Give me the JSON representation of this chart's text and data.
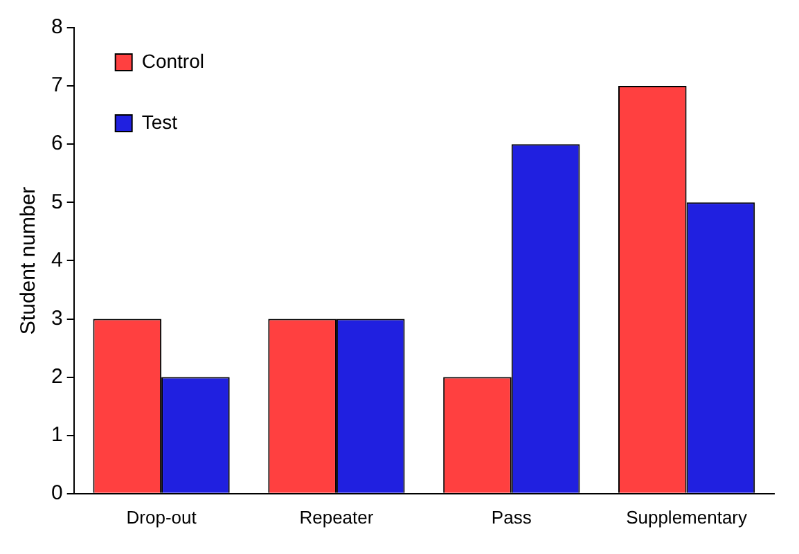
{
  "chart_data": {
    "type": "bar",
    "ylabel": "Student number",
    "categories": [
      "Drop-out",
      "Repeater",
      "Pass",
      "Supplementary"
    ],
    "series": [
      {
        "name": "Control",
        "color": "#ff4040",
        "values": [
          3,
          3,
          2,
          7
        ]
      },
      {
        "name": "Test",
        "color": "#2020e0",
        "values": [
          2,
          3,
          6,
          5
        ]
      }
    ],
    "ylim": [
      0,
      8
    ],
    "yticks": [
      0,
      1,
      2,
      3,
      4,
      5,
      6,
      7,
      8
    ],
    "grid": false,
    "legend": "top left"
  }
}
